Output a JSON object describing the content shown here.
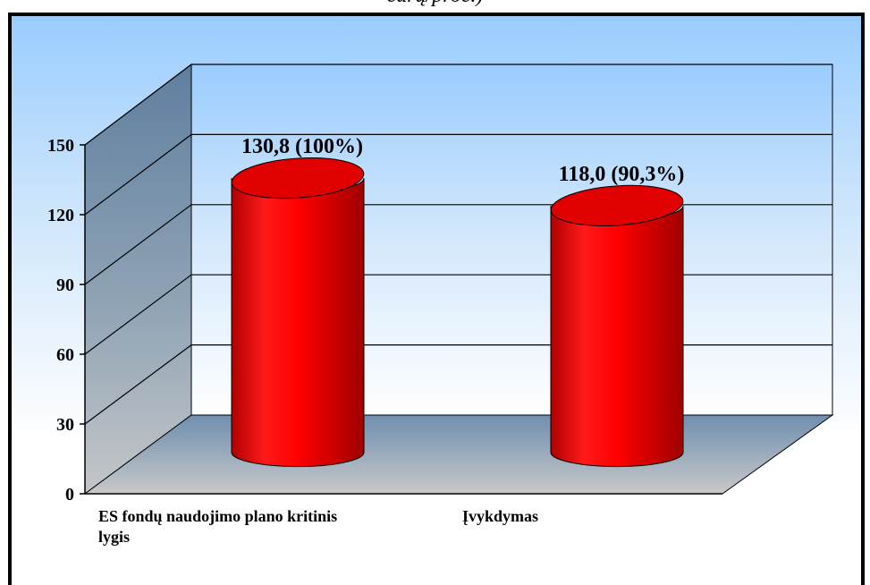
{
  "caption_fragment": "eurų/proc.)",
  "chart_data": {
    "type": "bar",
    "style": "3d-cylinder",
    "categories": [
      "ES fondų naudojimo plano kritinis lygis",
      "Įvykdymas"
    ],
    "category_lines": [
      [
        "ES fondų naudojimo plano kritinis",
        "lygis"
      ],
      [
        "Įvykdymas"
      ]
    ],
    "values": [
      130.8,
      118.0
    ],
    "data_labels": [
      "130,8 (100%)",
      "118,0 (90,3%)"
    ],
    "ylim": [
      0,
      150
    ],
    "yticks": [
      0,
      30,
      60,
      90,
      120,
      150
    ],
    "ytick_labels": [
      "0",
      "30",
      "60",
      "90",
      "120",
      "150"
    ],
    "grid": true,
    "bar_color": "#ff0000",
    "back_wall_color": "#99ccff",
    "floor_color": "#6f8fb0"
  }
}
